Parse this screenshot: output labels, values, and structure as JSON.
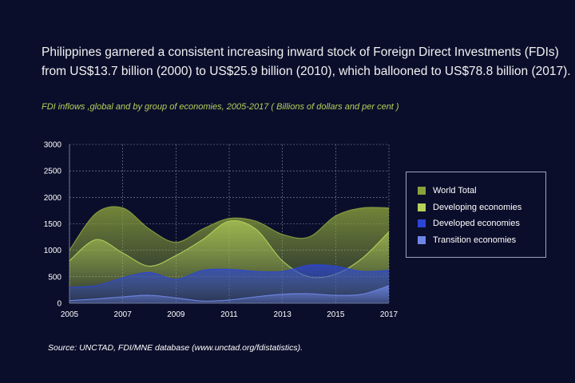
{
  "headline": {
    "line1": "Philippines garnered a consistent increasing inward stock of Foreign Direct Investments (FDIs)",
    "line2": "from US$13.7 billion (2000) to US$25.9 billion (2010), which ballooned to US$78.8 billion (2017)."
  },
  "colors": {
    "background": "#0b0e2b",
    "world": "#8aa23c",
    "developing": "#b5d15a",
    "developed": "#2b45d6",
    "transition": "#6f86e6"
  },
  "chart_data": {
    "type": "area",
    "title": "FDI inflows ,global and by group of economies, 2005-2017 ( Billions of dollars and per cent )",
    "x": [
      2005,
      2006,
      2007,
      2008,
      2009,
      2010,
      2011,
      2012,
      2013,
      2014,
      2015,
      2016,
      2017
    ],
    "xticks": [
      "2005",
      "2007",
      "2009",
      "2011",
      "2013",
      "2015",
      "2017"
    ],
    "yticks": [
      "0",
      "500",
      "1000",
      "1500",
      "2000",
      "2500",
      "3000"
    ],
    "ylim": [
      0,
      3000
    ],
    "xlim": [
      2005,
      2017
    ],
    "grid": true,
    "legend_position": "right",
    "series": [
      {
        "name": "World Total",
        "values": [
          1000,
          1700,
          1800,
          1400,
          1150,
          1400,
          1600,
          1550,
          1300,
          1250,
          1650,
          1800,
          1800
        ]
      },
      {
        "name": "Developing economies",
        "values": [
          800,
          1200,
          950,
          700,
          900,
          1200,
          1550,
          1400,
          800,
          500,
          550,
          850,
          1350
        ]
      },
      {
        "name": "Developed economies",
        "values": [
          300,
          330,
          480,
          580,
          450,
          620,
          640,
          600,
          600,
          720,
          700,
          600,
          620
        ]
      },
      {
        "name": "Transition economies",
        "values": [
          50,
          80,
          120,
          150,
          100,
          40,
          60,
          120,
          170,
          180,
          150,
          170,
          330
        ]
      }
    ]
  },
  "source": "Source: UNCTAD, FDI/MNE database (www.unctad.org/fdistatistics)."
}
